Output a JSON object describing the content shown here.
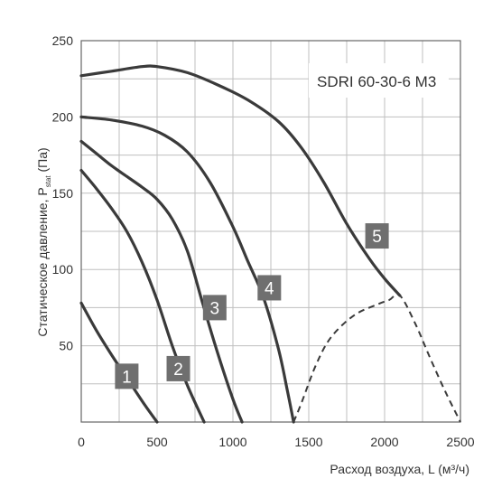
{
  "chart_data": {
    "type": "line",
    "title": "SDRI 60-30-6 M3",
    "xlabel": "Расход воздуха, L (м³/ч)",
    "ylabel_main": "Статическое давление, P",
    "ylabel_sub": "stat",
    "ylabel_tail": " (Па)",
    "xlim": [
      0,
      2500
    ],
    "ylim": [
      0,
      250
    ],
    "x_ticks": [
      0,
      500,
      1000,
      1500,
      2000,
      2500
    ],
    "y_ticks": [
      50,
      100,
      150,
      200,
      250
    ],
    "x_tick_labels": [
      "0",
      "500",
      "1000",
      "1500",
      "2000",
      "2500"
    ],
    "y_tick_labels": [
      "50",
      "100",
      "150",
      "200",
      "250"
    ],
    "grid": true,
    "grid_step_x": 250,
    "grid_step_y": 25,
    "series": [
      {
        "name": "1",
        "points": [
          [
            0,
            78
          ],
          [
            100,
            60
          ],
          [
            200,
            44
          ],
          [
            300,
            29
          ],
          [
            420,
            11
          ],
          [
            500,
            0
          ]
        ]
      },
      {
        "name": "2",
        "points": [
          [
            0,
            165
          ],
          [
            100,
            153
          ],
          [
            200,
            140
          ],
          [
            300,
            125
          ],
          [
            400,
            105
          ],
          [
            500,
            80
          ],
          [
            600,
            50
          ],
          [
            700,
            24
          ],
          [
            810,
            0
          ]
        ]
      },
      {
        "name": "3",
        "points": [
          [
            0,
            184
          ],
          [
            100,
            176
          ],
          [
            200,
            168
          ],
          [
            300,
            161
          ],
          [
            400,
            154
          ],
          [
            500,
            146
          ],
          [
            600,
            133
          ],
          [
            700,
            112
          ],
          [
            800,
            78
          ],
          [
            900,
            45
          ],
          [
            1000,
            15
          ],
          [
            1060,
            0
          ]
        ]
      },
      {
        "name": "4",
        "points": [
          [
            0,
            200
          ],
          [
            200,
            198
          ],
          [
            400,
            194
          ],
          [
            550,
            188
          ],
          [
            700,
            177
          ],
          [
            850,
            157
          ],
          [
            1000,
            128
          ],
          [
            1100,
            105
          ],
          [
            1200,
            82
          ],
          [
            1300,
            48
          ],
          [
            1360,
            20
          ],
          [
            1400,
            0
          ]
        ]
      },
      {
        "name": "5",
        "points": [
          [
            0,
            227
          ],
          [
            200,
            230
          ],
          [
            400,
            233
          ],
          [
            500,
            233
          ],
          [
            700,
            229
          ],
          [
            900,
            221
          ],
          [
            1100,
            211
          ],
          [
            1300,
            197
          ],
          [
            1450,
            180
          ],
          [
            1600,
            157
          ],
          [
            1750,
            130
          ],
          [
            1900,
            107
          ],
          [
            2000,
            94
          ],
          [
            2100,
            83
          ]
        ]
      }
    ],
    "dashed_curve": {
      "points": [
        [
          1400,
          0
        ],
        [
          1450,
          12
        ],
        [
          1550,
          38
        ],
        [
          1650,
          56
        ],
        [
          1800,
          70
        ],
        [
          1950,
          77
        ],
        [
          2030,
          80
        ],
        [
          2100,
          83
        ],
        [
          2200,
          65
        ],
        [
          2300,
          42
        ],
        [
          2400,
          20
        ],
        [
          2500,
          0
        ]
      ]
    },
    "curve_labels": [
      {
        "text": "1",
        "x": 300,
        "y": 30
      },
      {
        "text": "2",
        "x": 640,
        "y": 35
      },
      {
        "text": "3",
        "x": 880,
        "y": 75
      },
      {
        "text": "4",
        "x": 1240,
        "y": 88
      },
      {
        "text": "5",
        "x": 1950,
        "y": 122
      }
    ],
    "colors": {
      "curve": "#3a3a3a",
      "label_bg": "#6f6f6f",
      "label_text": "#ffffff",
      "grid": "#bfbfbf",
      "axis": "#666666"
    }
  }
}
